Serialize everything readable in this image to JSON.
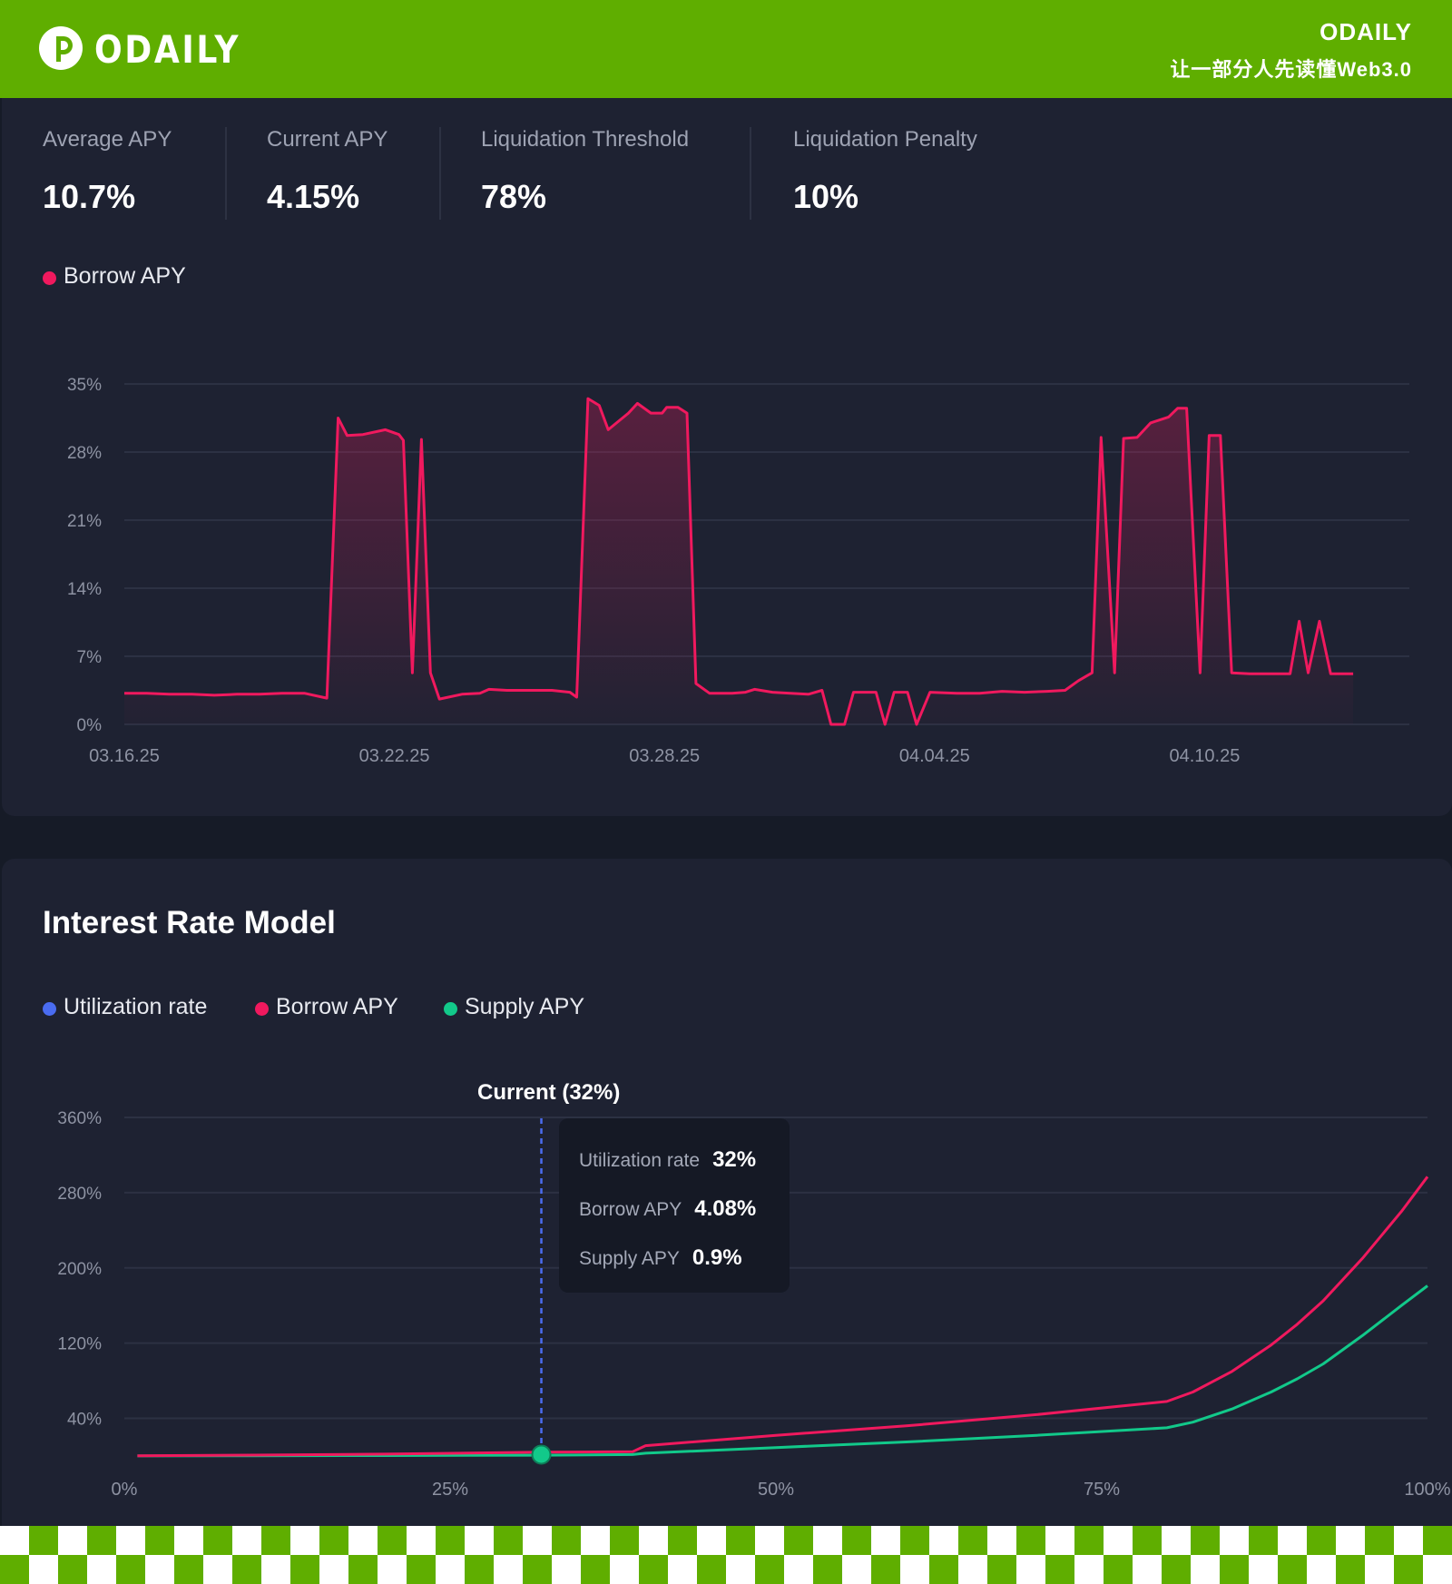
{
  "header": {
    "logo_text": "ODAILY",
    "brand_name": "ODAILY",
    "tagline": "让一部分人先读懂Web3.0"
  },
  "stats": [
    {
      "label": "Average APY",
      "value": "10.7%"
    },
    {
      "label": "Current APY",
      "value": "4.15%"
    },
    {
      "label": "Liquidation Threshold",
      "value": "78%"
    },
    {
      "label": "Liquidation Penalty",
      "value": "10%"
    }
  ],
  "history_legend": {
    "label": "Borrow APY",
    "color": "#f0195e"
  },
  "interest_model": {
    "title": "Interest Rate Model",
    "legend": [
      {
        "label": "Utilization rate",
        "color": "#4a6cf0"
      },
      {
        "label": "Borrow APY",
        "color": "#f0195e"
      },
      {
        "label": "Supply APY",
        "color": "#12c98a"
      }
    ],
    "current_label": "Current (32%)",
    "tooltip": {
      "rows": [
        {
          "label": "Utilization rate",
          "value": "32%"
        },
        {
          "label": "Borrow APY",
          "value": "4.08%"
        },
        {
          "label": "Supply APY",
          "value": "0.9%"
        }
      ]
    }
  },
  "colors": {
    "header_green": "#5fae00",
    "panel_bg": "#1e2232",
    "borrow": "#f0195e",
    "supply": "#12c98a",
    "utilization": "#4a6cf0"
  },
  "chart_data": [
    {
      "type": "area",
      "ylabel": "",
      "xlabel": "",
      "ylim": [
        0,
        35
      ],
      "y_ticks": [
        "0%",
        "7%",
        "14%",
        "21%",
        "28%",
        "35%"
      ],
      "x_tick_labels": [
        "03.16.25",
        "03.22.25",
        "03.28.25",
        "04.04.25",
        "04.10.25"
      ],
      "x_tick_days": [
        0,
        6,
        12,
        18,
        24
      ],
      "grid": true,
      "series": [
        {
          "name": "Borrow APY",
          "color": "#f0195e",
          "points": [
            [
              0.0,
              3.2
            ],
            [
              0.5,
              3.2
            ],
            [
              1.0,
              3.1
            ],
            [
              1.5,
              3.1
            ],
            [
              2.0,
              3.0
            ],
            [
              2.5,
              3.1
            ],
            [
              3.0,
              3.1
            ],
            [
              3.5,
              3.2
            ],
            [
              4.0,
              3.2
            ],
            [
              4.5,
              2.7
            ],
            [
              4.75,
              31.5
            ],
            [
              4.95,
              29.7
            ],
            [
              5.3,
              29.8
            ],
            [
              5.8,
              30.3
            ],
            [
              6.1,
              29.8
            ],
            [
              6.2,
              29.2
            ],
            [
              6.4,
              5.3
            ],
            [
              6.6,
              29.3
            ],
            [
              6.8,
              5.3
            ],
            [
              7.0,
              2.6
            ],
            [
              7.5,
              3.1
            ],
            [
              7.9,
              3.2
            ],
            [
              8.1,
              3.6
            ],
            [
              8.5,
              3.5
            ],
            [
              9.0,
              3.5
            ],
            [
              9.5,
              3.5
            ],
            [
              9.9,
              3.3
            ],
            [
              10.05,
              2.8
            ],
            [
              10.3,
              33.5
            ],
            [
              10.55,
              32.8
            ],
            [
              10.75,
              30.3
            ],
            [
              11.2,
              32.0
            ],
            [
              11.4,
              33.0
            ],
            [
              11.7,
              32.0
            ],
            [
              11.95,
              32.0
            ],
            [
              12.05,
              32.6
            ],
            [
              12.3,
              32.6
            ],
            [
              12.5,
              32.0
            ],
            [
              12.7,
              4.2
            ],
            [
              13.0,
              3.2
            ],
            [
              13.5,
              3.2
            ],
            [
              13.8,
              3.3
            ],
            [
              14.0,
              3.6
            ],
            [
              14.4,
              3.3
            ],
            [
              14.8,
              3.2
            ],
            [
              15.2,
              3.1
            ],
            [
              15.5,
              3.5
            ],
            [
              15.7,
              0.0
            ],
            [
              16.0,
              0.0
            ],
            [
              16.2,
              3.3
            ],
            [
              16.7,
              3.3
            ],
            [
              16.9,
              0.0
            ],
            [
              17.1,
              3.3
            ],
            [
              17.4,
              3.3
            ],
            [
              17.6,
              0.0
            ],
            [
              17.9,
              3.3
            ],
            [
              18.5,
              3.2
            ],
            [
              19.0,
              3.2
            ],
            [
              19.5,
              3.4
            ],
            [
              20.0,
              3.3
            ],
            [
              20.5,
              3.4
            ],
            [
              20.9,
              3.5
            ],
            [
              21.2,
              4.5
            ],
            [
              21.5,
              5.3
            ],
            [
              21.7,
              29.5
            ],
            [
              22.0,
              5.3
            ],
            [
              22.2,
              29.4
            ],
            [
              22.5,
              29.5
            ],
            [
              22.8,
              31.0
            ],
            [
              23.2,
              31.6
            ],
            [
              23.4,
              32.5
            ],
            [
              23.6,
              32.5
            ],
            [
              23.9,
              5.3
            ],
            [
              24.1,
              29.7
            ],
            [
              24.35,
              29.7
            ],
            [
              24.6,
              5.3
            ],
            [
              25.0,
              5.2
            ],
            [
              25.5,
              5.2
            ],
            [
              25.9,
              5.2
            ],
            [
              26.1,
              10.6
            ],
            [
              26.3,
              5.3
            ],
            [
              26.55,
              10.6
            ],
            [
              26.8,
              5.2
            ],
            [
              27.3,
              5.2
            ]
          ]
        }
      ]
    },
    {
      "type": "line",
      "ylabel": "",
      "xlabel": "",
      "xlim": [
        0,
        100
      ],
      "ylim": [
        0,
        360
      ],
      "y_ticks": [
        40,
        120,
        200,
        280,
        360
      ],
      "y_tick_labels": [
        "40%",
        "120%",
        "200%",
        "280%",
        "360%"
      ],
      "x_ticks": [
        0,
        25,
        50,
        75,
        100
      ],
      "x_tick_labels": [
        "0%",
        "25%",
        "50%",
        "75%",
        "100%"
      ],
      "grid": true,
      "current_utilization": 32,
      "series": [
        {
          "name": "Borrow APY",
          "color": "#f0195e",
          "x": [
            1,
            10,
            20,
            32,
            39,
            40,
            50,
            60,
            70,
            80,
            82,
            85,
            88,
            90,
            92,
            95,
            98,
            100
          ],
          "y": [
            0.3,
            1.0,
            2.0,
            4.08,
            4.5,
            11,
            22,
            32,
            44,
            58,
            68,
            90,
            118,
            140,
            165,
            210,
            260,
            297
          ]
        },
        {
          "name": "Supply APY",
          "color": "#12c98a",
          "x": [
            1,
            10,
            20,
            32,
            39,
            40,
            50,
            60,
            70,
            80,
            82,
            85,
            88,
            90,
            92,
            95,
            98,
            100
          ],
          "y": [
            0.1,
            0.3,
            0.5,
            0.9,
            1.5,
            3,
            9,
            15,
            22,
            30,
            36,
            50,
            68,
            82,
            98,
            128,
            160,
            181
          ]
        }
      ]
    }
  ]
}
